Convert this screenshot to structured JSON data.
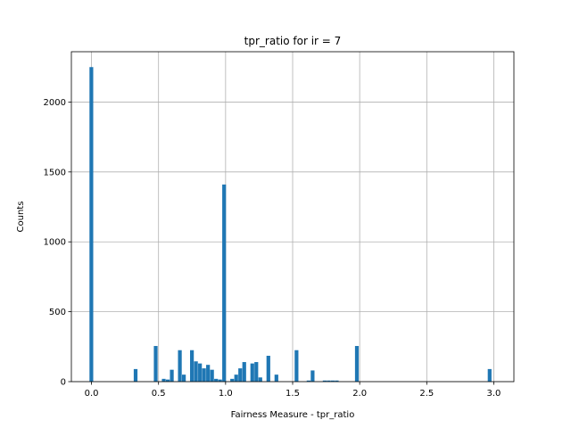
{
  "chart_data": {
    "type": "bar",
    "title": "tpr_ratio for ir = 7",
    "xlabel": "Fairness Measure - tpr_ratio",
    "ylabel": "Counts",
    "xlim": [
      -0.15,
      3.15
    ],
    "ylim": [
      0,
      2360
    ],
    "xticks": [
      0.0,
      0.5,
      1.0,
      1.5,
      2.0,
      2.5,
      3.0
    ],
    "xtick_labels": [
      "0.0",
      "0.5",
      "1.0",
      "1.5",
      "2.0",
      "2.5",
      "3.0"
    ],
    "yticks": [
      0,
      500,
      1000,
      1500,
      2000
    ],
    "ytick_labels": [
      "0",
      "500",
      "1000",
      "1500",
      "2000"
    ],
    "grid": true,
    "bin_width": 0.03,
    "bar_color": "#1f77b4",
    "bins": [
      {
        "x": 0.0,
        "count": 2250
      },
      {
        "x": 0.33,
        "count": 90
      },
      {
        "x": 0.48,
        "count": 255
      },
      {
        "x": 0.54,
        "count": 20
      },
      {
        "x": 0.57,
        "count": 15
      },
      {
        "x": 0.6,
        "count": 85
      },
      {
        "x": 0.66,
        "count": 225
      },
      {
        "x": 0.69,
        "count": 50
      },
      {
        "x": 0.75,
        "count": 225
      },
      {
        "x": 0.78,
        "count": 145
      },
      {
        "x": 0.81,
        "count": 130
      },
      {
        "x": 0.84,
        "count": 95
      },
      {
        "x": 0.87,
        "count": 120
      },
      {
        "x": 0.9,
        "count": 85
      },
      {
        "x": 0.93,
        "count": 20
      },
      {
        "x": 0.96,
        "count": 15
      },
      {
        "x": 0.99,
        "count": 1410
      },
      {
        "x": 1.05,
        "count": 20
      },
      {
        "x": 1.08,
        "count": 50
      },
      {
        "x": 1.11,
        "count": 95
      },
      {
        "x": 1.14,
        "count": 140
      },
      {
        "x": 1.2,
        "count": 130
      },
      {
        "x": 1.23,
        "count": 140
      },
      {
        "x": 1.26,
        "count": 30
      },
      {
        "x": 1.32,
        "count": 185
      },
      {
        "x": 1.38,
        "count": 50
      },
      {
        "x": 1.53,
        "count": 225
      },
      {
        "x": 1.62,
        "count": 8
      },
      {
        "x": 1.65,
        "count": 80
      },
      {
        "x": 1.74,
        "count": 8
      },
      {
        "x": 1.77,
        "count": 8
      },
      {
        "x": 1.8,
        "count": 8
      },
      {
        "x": 1.83,
        "count": 8
      },
      {
        "x": 1.98,
        "count": 255
      },
      {
        "x": 2.97,
        "count": 90
      }
    ]
  }
}
